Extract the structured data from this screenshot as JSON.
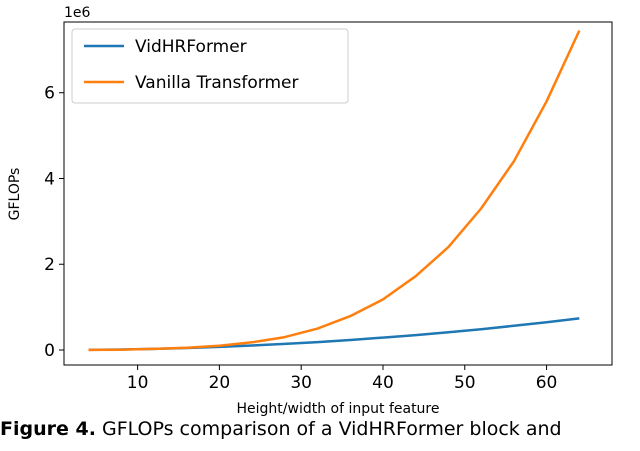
{
  "chart_data": {
    "type": "line",
    "title": "",
    "xlabel": "Height/width of input feature",
    "ylabel": "GFLOPs",
    "y_multiplier_label": "1e6",
    "xlim": [
      1,
      68
    ],
    "ylim": [
      -0.35,
      7.65
    ],
    "x_ticks": [
      10,
      20,
      30,
      40,
      50,
      60
    ],
    "y_ticks": [
      0,
      2,
      4,
      6
    ],
    "x": [
      4,
      8,
      12,
      16,
      20,
      24,
      28,
      32,
      36,
      40,
      44,
      48,
      52,
      56,
      60,
      64
    ],
    "series": [
      {
        "name": "VidHRFormer",
        "color": "#1f77b4",
        "values": [
          0.003,
          0.011,
          0.026,
          0.046,
          0.072,
          0.104,
          0.141,
          0.184,
          0.233,
          0.288,
          0.348,
          0.414,
          0.486,
          0.564,
          0.647,
          0.736
        ]
      },
      {
        "name": "Vanilla Transformer",
        "color": "#ff7f0e",
        "values": [
          0.002,
          0.007,
          0.025,
          0.052,
          0.1,
          0.18,
          0.3,
          0.5,
          0.79,
          1.18,
          1.72,
          2.4,
          3.3,
          4.4,
          5.8,
          7.45
        ]
      }
    ],
    "grid": false,
    "legend_position": "top-left"
  },
  "caption": {
    "label": "Figure 4.",
    "text": " GFLOPs comparison of a VidHRFormer block and"
  }
}
